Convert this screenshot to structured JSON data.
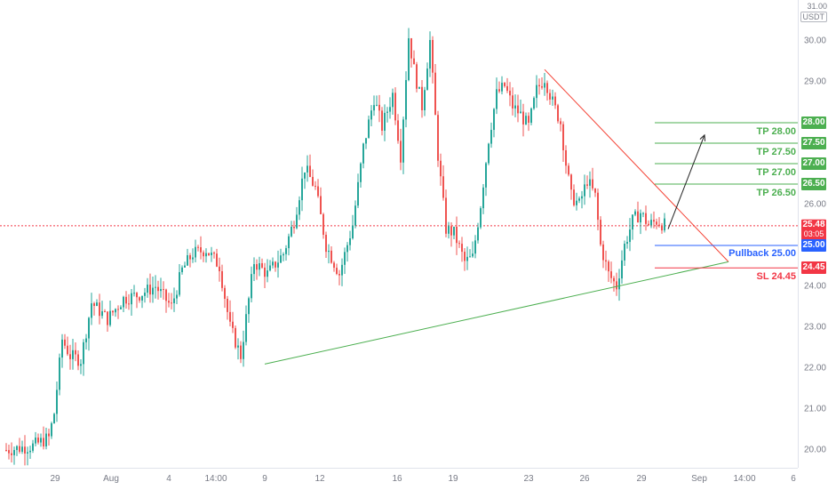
{
  "colors": {
    "up": "#26a69a",
    "down": "#ef5350",
    "tp": "#4caf50",
    "pullback": "#2962ff",
    "sl": "#f23645",
    "price": "#f23645",
    "upper_trend": "#f44336",
    "lower_trend": "#4caf50"
  },
  "header": {
    "currency_top": "31.00",
    "currency": "USDT"
  },
  "price_axis": {
    "ticks": [
      "30.00",
      "29.00",
      "26.00",
      "24.00",
      "23.00",
      "22.00",
      "21.00",
      "20.00"
    ]
  },
  "time_axis": {
    "ticks": [
      "29",
      "Aug",
      "4",
      "14:00",
      "9",
      "12",
      "16",
      "19",
      "23",
      "26",
      "29",
      "Sep",
      "14:00",
      "6"
    ]
  },
  "tags": {
    "tp4": "28.00",
    "tp3": "27.50",
    "tp2": "27.00",
    "tp1": "26.50",
    "price": "25.48",
    "countdown": "03:05",
    "pullback": "25.00",
    "sl": "24.45"
  },
  "levels": {
    "tp4": "TP 28.00",
    "tp3": "TP 27.50",
    "tp2": "TP 27.00",
    "tp1": "TP 26.50",
    "pullback": "Pullback 25.00",
    "sl": "SL 24.45"
  },
  "chart_data": {
    "type": "candlestick",
    "ylim": [
      19.8,
      31.0
    ],
    "last_price": 25.48,
    "levels": {
      "tp": [
        28.0,
        27.5,
        27.0,
        26.5
      ],
      "pullback": 25.0,
      "stop_loss": 24.45
    },
    "trendlines": {
      "upper": [
        [
          0,
          29.3
        ],
        [
          1,
          24.6
        ]
      ],
      "lower": [
        [
          0,
          22.1
        ],
        [
          1,
          24.6
        ]
      ]
    },
    "anchors": [
      [
        0,
        20.0
      ],
      [
        10,
        20.1
      ],
      [
        16,
        20.3
      ],
      [
        18,
        20.9
      ],
      [
        21,
        22.7
      ],
      [
        24,
        22.3
      ],
      [
        28,
        22.2
      ],
      [
        32,
        23.6
      ],
      [
        38,
        23.2
      ],
      [
        44,
        23.7
      ],
      [
        50,
        23.8
      ],
      [
        56,
        24.0
      ],
      [
        62,
        23.5
      ],
      [
        66,
        24.4
      ],
      [
        70,
        24.8
      ],
      [
        75,
        24.9
      ],
      [
        80,
        24.5
      ],
      [
        84,
        23.0
      ],
      [
        88,
        22.3
      ],
      [
        93,
        24.6
      ],
      [
        98,
        24.3
      ],
      [
        104,
        24.8
      ],
      [
        108,
        25.6
      ],
      [
        112,
        26.9
      ],
      [
        116,
        26.4
      ],
      [
        120,
        25.0
      ],
      [
        125,
        24.3
      ],
      [
        130,
        25.5
      ],
      [
        134,
        27.4
      ],
      [
        138,
        28.6
      ],
      [
        141,
        27.9
      ],
      [
        145,
        28.7
      ],
      [
        148,
        27.2
      ],
      [
        151,
        30.1
      ],
      [
        153,
        29.3
      ],
      [
        156,
        28.4
      ],
      [
        159,
        30.0
      ],
      [
        162,
        27.2
      ],
      [
        165,
        25.4
      ],
      [
        168,
        25.3
      ],
      [
        172,
        24.6
      ],
      [
        175,
        24.7
      ],
      [
        178,
        26.0
      ],
      [
        181,
        27.6
      ],
      [
        184,
        28.7
      ],
      [
        187,
        28.9
      ],
      [
        190,
        28.4
      ],
      [
        193,
        28.2
      ],
      [
        196,
        27.9
      ],
      [
        199,
        28.8
      ],
      [
        202,
        29.1
      ],
      [
        205,
        28.5
      ],
      [
        208,
        28.0
      ],
      [
        210,
        27.0
      ],
      [
        212,
        26.2
      ],
      [
        215,
        26.0
      ],
      [
        218,
        26.6
      ],
      [
        221,
        26.2
      ],
      [
        223,
        25.0
      ],
      [
        226,
        24.3
      ],
      [
        229,
        24.0
      ],
      [
        232,
        25.0
      ],
      [
        235,
        25.6
      ],
      [
        238,
        25.8
      ],
      [
        241,
        25.5
      ],
      [
        244,
        25.6
      ],
      [
        247,
        25.5
      ]
    ],
    "projection": [
      [
        0,
        25.4
      ],
      [
        1,
        27.7
      ]
    ]
  }
}
